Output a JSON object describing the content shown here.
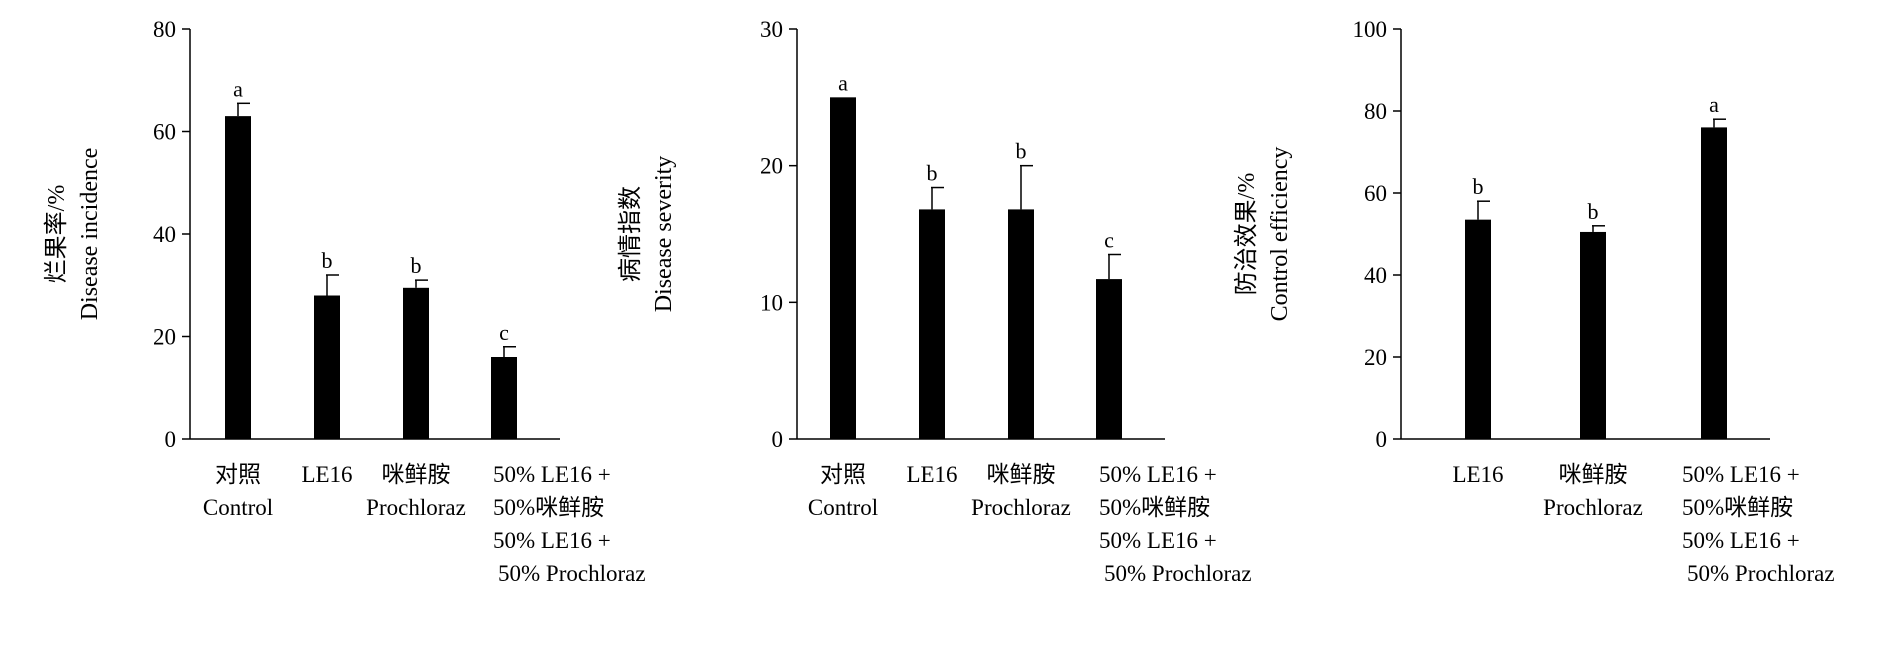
{
  "chart_data": [
    {
      "type": "bar",
      "categories": [
        [
          "对照",
          "Control"
        ],
        [
          "LE16"
        ],
        [
          "咪鲜胺",
          "Prochloraz"
        ],
        [
          "50% LE16 +",
          "50%咪鲜胺",
          "50% LE16 +",
          "50% Prochloraz"
        ]
      ],
      "values": [
        63,
        28,
        29.5,
        16
      ],
      "errors": [
        2.5,
        4,
        1.5,
        2
      ],
      "significance": [
        "a",
        "b",
        "b",
        "c"
      ],
      "ylabel": [
        "烂果率/%",
        "Disease incidence"
      ],
      "ylim": [
        0,
        80
      ],
      "yticks": [
        "0",
        "20",
        "40",
        "60",
        "80"
      ],
      "bar_color": "#000000",
      "grid": false
    },
    {
      "type": "bar",
      "categories": [
        [
          "对照",
          "Control"
        ],
        [
          "LE16"
        ],
        [
          "咪鲜胺",
          "Prochloraz"
        ],
        [
          "50% LE16 +",
          "50%咪鲜胺",
          "50% LE16 +",
          "50% Prochloraz"
        ]
      ],
      "values": [
        25,
        16.8,
        16.8,
        11.7
      ],
      "errors": [
        0,
        1.6,
        3.2,
        1.8
      ],
      "significance": [
        "a",
        "b",
        "b",
        "c"
      ],
      "ylabel": [
        "病情指数",
        "Disease severity"
      ],
      "ylim": [
        0,
        30
      ],
      "yticks": [
        "0",
        "10",
        "20",
        "30"
      ],
      "bar_color": "#000000",
      "grid": false
    },
    {
      "type": "bar",
      "categories": [
        [
          "LE16"
        ],
        [
          "咪鲜胺",
          "Prochloraz"
        ],
        [
          "50% LE16 +",
          "50%咪鲜胺",
          "50% LE16 +",
          "50% Prochloraz"
        ]
      ],
      "values": [
        53.5,
        50.5,
        76
      ],
      "errors": [
        4.5,
        1.5,
        2
      ],
      "significance": [
        "b",
        "b",
        "a"
      ],
      "ylabel": [
        "防治效果/%",
        "Control efficiency"
      ],
      "ylim": [
        0,
        100
      ],
      "yticks": [
        "0",
        "20",
        "40",
        "60",
        "80",
        "100"
      ],
      "bar_color": "#000000",
      "grid": false
    }
  ]
}
